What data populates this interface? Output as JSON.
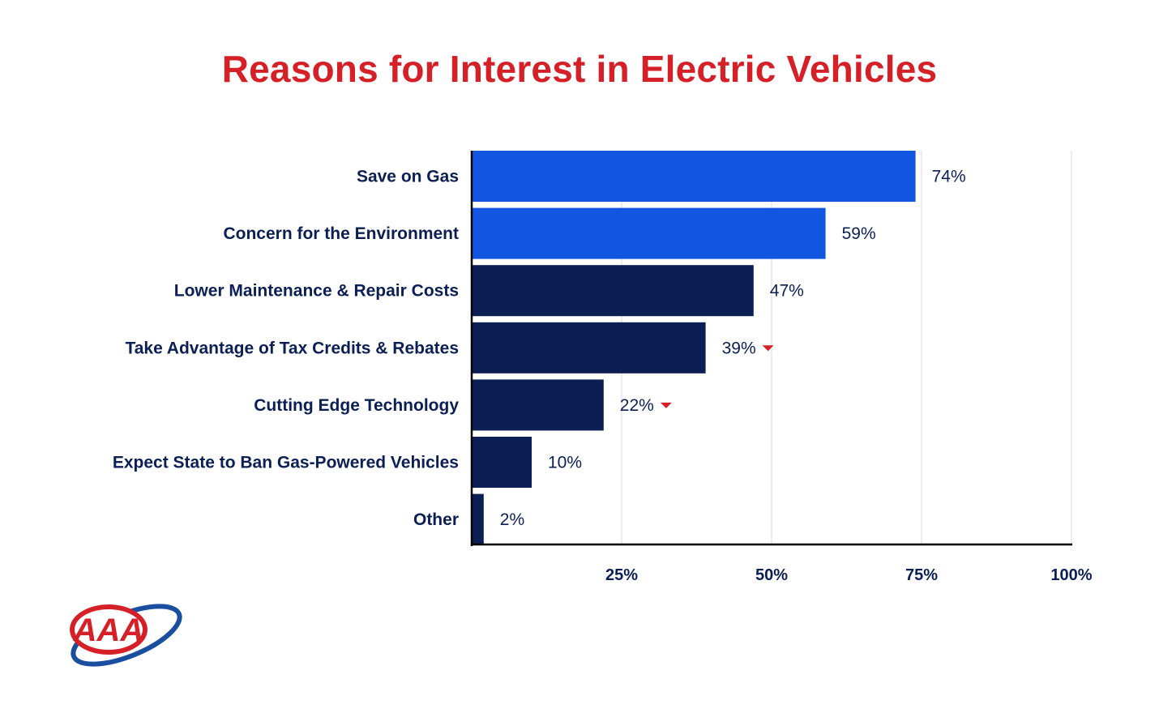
{
  "chart_data": {
    "type": "bar",
    "orientation": "horizontal",
    "title": "Reasons for Interest in Electric Vehicles",
    "categories": [
      "Save on Gas",
      "Concern for the Environment",
      "Lower Maintenance & Repair Costs",
      "Take Advantage of Tax Credits & Rebates",
      "Cutting Edge Technology",
      "Expect State to Ban Gas-Powered Vehicles",
      "Other"
    ],
    "values": [
      74,
      59,
      47,
      39,
      22,
      10,
      2
    ],
    "value_labels": [
      "74%",
      "59%",
      "47%",
      "39%",
      "22%",
      "10%",
      "2%"
    ],
    "highlight": [
      true,
      true,
      false,
      false,
      false,
      false,
      false
    ],
    "decrease_marker": [
      false,
      false,
      false,
      true,
      true,
      false,
      false
    ],
    "xlim": [
      0,
      100
    ],
    "xticks": [
      25,
      50,
      75,
      100
    ],
    "xtick_labels": [
      "25%",
      "50%",
      "75%",
      "100%"
    ],
    "xlabel": "",
    "ylabel": "",
    "grid": true
  },
  "colors": {
    "title": "#d62028",
    "highlight_bar": "#1155e0",
    "bar": "#0b1f55",
    "text": "#0b1f55",
    "axis": "#000000",
    "grid": "#e6e6ee",
    "marker": "#d62028",
    "logo_red": "#d62028",
    "logo_blue": "#1a4fa0"
  },
  "logo": {
    "text": "AAA"
  }
}
